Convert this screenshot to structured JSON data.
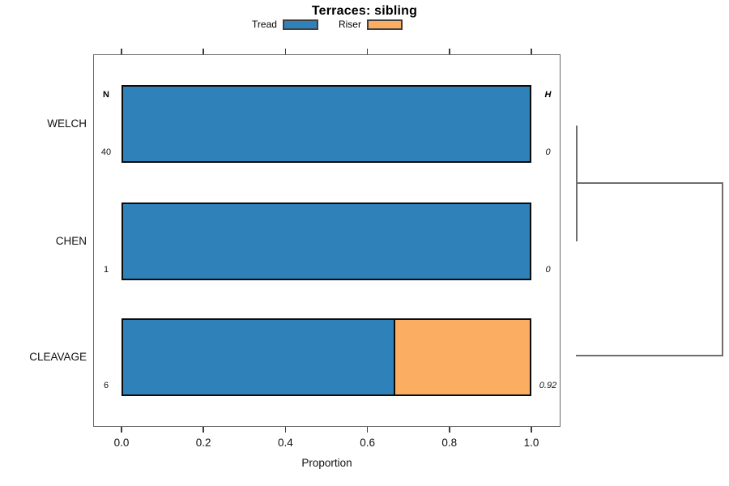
{
  "chart_data": {
    "type": "bar",
    "orientation": "horizontal",
    "stacked": true,
    "title": "Terraces: sibling",
    "xlabel": "Proportion",
    "xlim": [
      0,
      1
    ],
    "xticks": [
      0,
      0.2,
      0.4,
      0.6,
      0.8,
      1.0
    ],
    "xtick_labels": [
      "0.0",
      "0.2",
      "0.4",
      "0.6",
      "0.8",
      "1.0"
    ],
    "grid": false,
    "legend_position": "top",
    "categories": [
      "WELCH",
      "CHEN",
      "CLEAVAGE"
    ],
    "series": [
      {
        "name": "Tread",
        "color": "#2E81B9",
        "values": [
          1.0,
          1.0,
          0.667
        ]
      },
      {
        "name": "Riser",
        "color": "#FBAD62",
        "values": [
          0.0,
          0.0,
          0.333
        ]
      }
    ],
    "annotations": {
      "n_column": {
        "header": "N",
        "values": [
          "40",
          "1",
          "6"
        ]
      },
      "h_column": {
        "header": "H",
        "values": [
          "0",
          "0",
          "0.92"
        ]
      }
    },
    "dendrogram": {
      "side": "right",
      "leaf_order": [
        "WELCH",
        "CHEN",
        "CLEAVAGE"
      ],
      "merges": [
        {
          "members": [
            "WELCH",
            "CHEN"
          ],
          "height": 0
        },
        {
          "members": [
            [
              "WELCH",
              "CHEN"
            ],
            "CLEAVAGE"
          ],
          "height": 0.92
        }
      ]
    }
  }
}
